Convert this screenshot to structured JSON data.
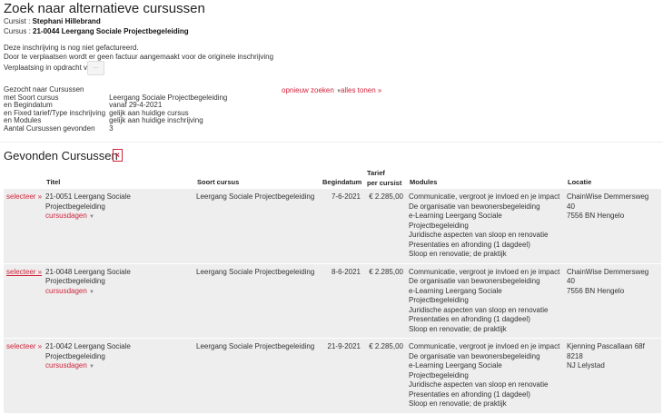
{
  "title": "Zoek naar alternatieve cursussen",
  "cursist_label": "Cursist :",
  "cursist": "Stephani Hillebrand",
  "cursus_label": "Cursus :",
  "cursus": "21-0044 Leergang Sociale Projectbegeleiding",
  "notice1": "Deze inschrijving is nog niet gefactureerd.",
  "notice2": "Door te verplaatsen wordt er geen factuur aangemaakt voor de originele inschrijving",
  "opdracht_label": "Verplaatsing in opdracht van:",
  "opdracht_button": "...",
  "search_summary": [
    {
      "k": "Gezocht naar Cursussen",
      "v": ""
    },
    {
      "k": "met Soort cursus",
      "v": "Leergang Sociale Projectbegeleiding"
    },
    {
      "k": "en Begindatum",
      "v": "vanaf 29-4-2021"
    },
    {
      "k": "en Fixed tarief/Type inschrijving",
      "v": "gelijk aan huidige cursus"
    },
    {
      "k": "en Modules",
      "v": "gelijk aan huidige inschrijving"
    },
    {
      "k": "Aantal Cursussen gevonden",
      "v": "3"
    }
  ],
  "opnieuw_zoeken": "opnieuw zoeken",
  "alles_tonen": "alles tonen »",
  "results_heading": "Gevonden Cursussen",
  "export_icon": "excel-export-icon",
  "columns": {
    "titel": "Titel",
    "soort": "Soort cursus",
    "begindatum": "Begindatum",
    "tarief1": "Tarief",
    "tarief2": "per cursist",
    "modules": "Modules",
    "locatie": "Locatie"
  },
  "select_label": "selecteer »",
  "cursusdagen_label": "cursusdagen",
  "rows": [
    {
      "titel": "21-0051 Leergang Sociale Projectbegeleiding",
      "soort": "Leergang Sociale Projectbegeleiding",
      "begindatum": "7-6-2021",
      "tarief": "€ 2.285,00",
      "modules": "Communicatie, vergroot je invloed en je impact\nDe organisatie van bewonersbegeleiding\ne-Learning Leergang Sociale Projectbegeleiding\nJuridische aspecten van sloop en renovatie\nPresentaties en afronding (1 dagdeel)\nSloop en renovatie; de praktijk",
      "locatie": "ChainWise Demmersweg 40\n7556 BN Hengelo"
    },
    {
      "titel": "21-0048 Leergang Sociale Projectbegeleiding",
      "soort": "Leergang Sociale Projectbegeleiding",
      "begindatum": "8-6-2021",
      "tarief": "€ 2.285,00",
      "modules": "Communicatie, vergroot je invloed en je impact\nDe organisatie van bewonersbegeleiding\ne-Learning Leergang Sociale Projectbegeleiding\nJuridische aspecten van sloop en renovatie\nPresentaties en afronding (1 dagdeel)\nSloop en renovatie; de praktijk",
      "locatie": "ChainWise Demmersweg 40\n7556 BN Hengelo"
    },
    {
      "titel": "21-0042 Leergang Sociale Projectbegeleiding",
      "soort": "Leergang Sociale Projectbegeleiding",
      "begindatum": "21-9-2021",
      "tarief": "€ 2.285,00",
      "modules": "Communicatie, vergroot je invloed en je impact\nDe organisatie van bewonersbegeleiding\ne-Learning Leergang Sociale Projectbegeleiding\nJuridische aspecten van sloop en renovatie\nPresentaties en afronding (1 dagdeel)\nSloop en renovatie; de praktijk",
      "locatie": "Kjenning Pascallaan 68f 8218\nNJ Lelystad"
    }
  ],
  "accent": "#d0243c"
}
